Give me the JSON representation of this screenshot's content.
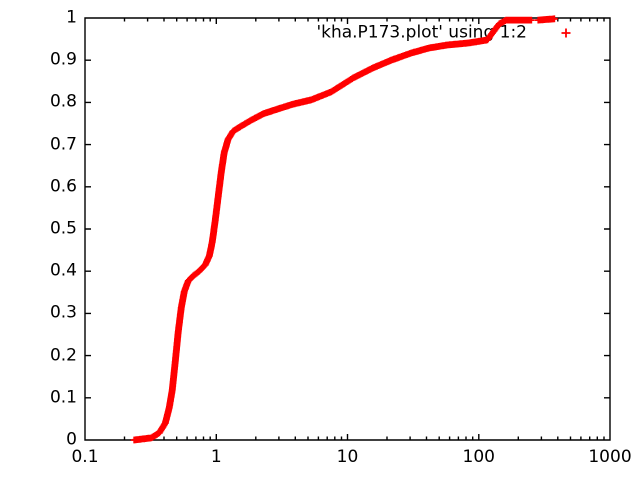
{
  "chart_data": {
    "type": "scatter",
    "title": "",
    "legend": "'kha.P173.plot' using 1:2",
    "legend_position": "top-right-inside",
    "marker_glyph": "+",
    "colors": {
      "series": "#ff0000",
      "axis": "#000000",
      "text": "#000000",
      "background": "#ffffff"
    },
    "x_axis": {
      "scale": "log",
      "min": 0.1,
      "max": 1000,
      "tick_values": [
        0.1,
        1,
        10,
        100,
        1000
      ],
      "tick_labels": [
        "0.1",
        "1",
        "10",
        "100",
        "1000"
      ],
      "label": ""
    },
    "y_axis": {
      "scale": "linear",
      "min": 0,
      "max": 1,
      "tick_values": [
        0,
        0.1,
        0.2,
        0.3,
        0.4,
        0.5,
        0.6,
        0.7,
        0.8,
        0.9,
        1
      ],
      "tick_labels": [
        "0",
        "0.1",
        "0.2",
        "0.3",
        "0.4",
        "0.5",
        "0.6",
        "0.7",
        "0.8",
        "0.9",
        "1"
      ],
      "label": ""
    },
    "grid": false,
    "series": [
      {
        "name": "'kha.P173.plot' using 1:2",
        "marker": "plus",
        "color": "#ff0000",
        "segments": [
          [
            [
              0.237,
              0.0
            ],
            [
              0.32,
              0.005
            ],
            [
              0.368,
              0.017
            ],
            [
              0.409,
              0.04
            ],
            [
              0.438,
              0.076
            ],
            [
              0.462,
              0.118
            ],
            [
              0.487,
              0.185
            ],
            [
              0.513,
              0.256
            ],
            [
              0.541,
              0.313
            ],
            [
              0.57,
              0.351
            ],
            [
              0.612,
              0.377
            ],
            [
              0.668,
              0.389
            ],
            [
              0.742,
              0.4
            ],
            [
              0.824,
              0.415
            ],
            [
              0.885,
              0.436
            ],
            [
              0.932,
              0.469
            ],
            [
              0.983,
              0.521
            ],
            [
              1.036,
              0.578
            ],
            [
              1.092,
              0.635
            ],
            [
              1.151,
              0.682
            ],
            [
              1.234,
              0.713
            ],
            [
              1.347,
              0.732
            ],
            [
              1.551,
              0.744
            ],
            [
              1.848,
              0.758
            ],
            [
              2.281,
              0.773
            ],
            [
              2.916,
              0.784
            ],
            [
              3.863,
              0.796
            ],
            [
              5.294,
              0.806
            ],
            [
              7.519,
              0.825
            ],
            [
              11.06,
              0.858
            ],
            [
              15.71,
              0.882
            ],
            [
              21.54,
              0.9
            ],
            [
              30.6,
              0.917
            ],
            [
              41.96,
              0.929
            ],
            [
              57.54,
              0.936
            ],
            [
              84.65,
              0.941
            ],
            [
              116.1,
              0.948
            ],
            [
              128.9,
              0.967
            ],
            [
              143.3,
              0.986
            ],
            [
              162.0,
              0.995
            ],
            [
              251.2,
              0.995
            ]
          ],
          [
            [
              284.1,
              0.995
            ],
            [
              376.1,
              0.998
            ]
          ]
        ]
      }
    ]
  }
}
